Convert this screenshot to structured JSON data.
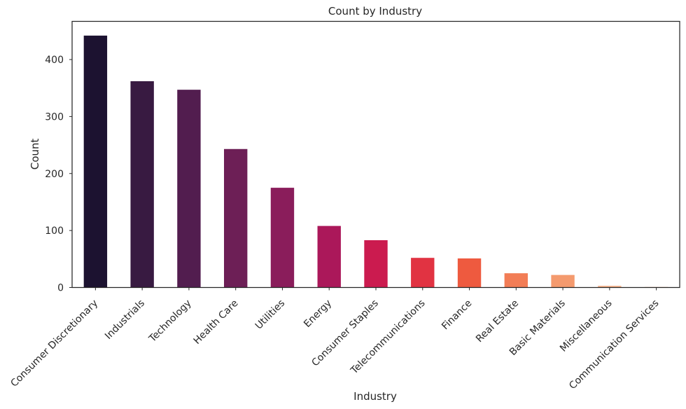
{
  "chart_data": {
    "type": "bar",
    "title": "Count by Industry",
    "xlabel": "Industry",
    "ylabel": "Count",
    "categories": [
      "Consumer Discretionary",
      "Industrials",
      "Technology",
      "Health Care",
      "Utilities",
      "Energy",
      "Consumer Staples",
      "Telecommunications",
      "Finance",
      "Real Estate",
      "Basic Materials",
      "Miscellaneous",
      "Communication Services"
    ],
    "values": [
      442,
      362,
      347,
      243,
      175,
      108,
      83,
      52,
      51,
      25,
      22,
      3,
      1
    ],
    "colors": [
      "#1c1230",
      "#381a41",
      "#521d4f",
      "#6d1f56",
      "#8a1d5b",
      "#ab185a",
      "#cb1b4f",
      "#e13342",
      "#ee5a3f",
      "#f27d56",
      "#f49a6e",
      "#f6b48e",
      "#f7cdb1"
    ],
    "yticks": [
      0,
      100,
      200,
      300,
      400
    ],
    "ylim": [
      0,
      467
    ],
    "grid": false,
    "legend": "none"
  }
}
